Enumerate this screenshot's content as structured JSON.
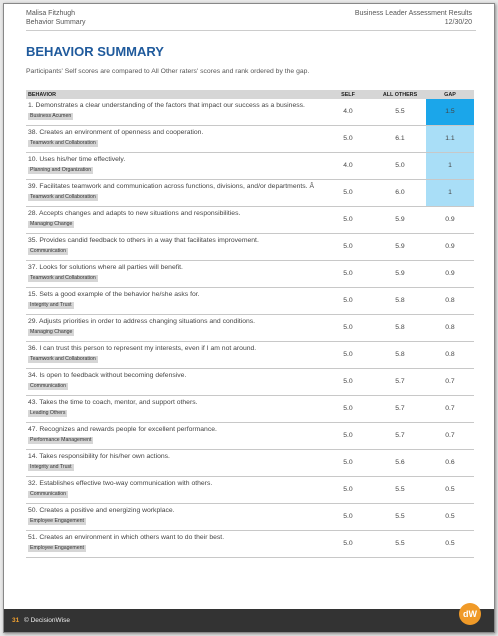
{
  "header": {
    "name": "Malisa Fitzhugh",
    "section": "Behavior Summary",
    "report": "Business Leader Assessment Results",
    "date": "12/30/20"
  },
  "title": "BEHAVIOR SUMMARY",
  "intro": "Participants' Self scores are compared to All Other raters' scores and rank ordered by the gap.",
  "table": {
    "columns": [
      "BEHAVIOR",
      "SELF",
      "ALL OTHERS",
      "GAP"
    ],
    "rows": [
      {
        "text": "1. Demonstrates a clear understanding of the factors that impact our success as a business.",
        "category": "Business Acumen",
        "self": "4.0",
        "others": "5.5",
        "gap": "1.5",
        "gap_color": "#1ba6ea"
      },
      {
        "text": "38. Creates an environment of openness and cooperation.",
        "category": "Teamwork and Collaboration",
        "self": "5.0",
        "others": "6.1",
        "gap": "1.1",
        "gap_color": "#a9def7"
      },
      {
        "text": "10. Uses his/her time effectively.",
        "category": "Planning and Organization",
        "self": "4.0",
        "others": "5.0",
        "gap": "1",
        "gap_color": "#a9def7"
      },
      {
        "text": "39. Facilitates teamwork and communication across functions, divisions, and/or departments. Â",
        "category": "Teamwork and Collaboration",
        "self": "5.0",
        "others": "6.0",
        "gap": "1",
        "gap_color": "#a9def7"
      },
      {
        "text": "28. Accepts changes and adapts to new situations and responsibilities.",
        "category": "Managing Change",
        "self": "5.0",
        "others": "5.9",
        "gap": "0.9"
      },
      {
        "text": "35. Provides candid feedback to others in a way that facilitates improvement.",
        "category": "Communication",
        "self": "5.0",
        "others": "5.9",
        "gap": "0.9"
      },
      {
        "text": "37. Looks for solutions where all parties will benefit.",
        "category": "Teamwork and Collaboration",
        "self": "5.0",
        "others": "5.9",
        "gap": "0.9"
      },
      {
        "text": "15. Sets a good example of the behavior he/she asks for.",
        "category": "Integrity and Trust",
        "self": "5.0",
        "others": "5.8",
        "gap": "0.8"
      },
      {
        "text": "29. Adjusts priorities in order to address changing situations and conditions.",
        "category": "Managing Change",
        "self": "5.0",
        "others": "5.8",
        "gap": "0.8"
      },
      {
        "text": "36. I can trust this person to represent my interests, even if I am not around.",
        "category": "Teamwork and Collaboration",
        "self": "5.0",
        "others": "5.8",
        "gap": "0.8"
      },
      {
        "text": "34. Is open to feedback without becoming defensive.",
        "category": "Communication",
        "self": "5.0",
        "others": "5.7",
        "gap": "0.7"
      },
      {
        "text": "43. Takes the time to coach, mentor, and support others.",
        "category": "Leading Others",
        "self": "5.0",
        "others": "5.7",
        "gap": "0.7"
      },
      {
        "text": "47. Recognizes and rewards people for excellent performance.",
        "category": "Performance Management",
        "self": "5.0",
        "others": "5.7",
        "gap": "0.7"
      },
      {
        "text": "14. Takes responsibility for his/her own actions.",
        "category": "Integrity and Trust",
        "self": "5.0",
        "others": "5.6",
        "gap": "0.6"
      },
      {
        "text": "32. Establishes effective two-way communication with others.",
        "category": "Communication",
        "self": "5.0",
        "others": "5.5",
        "gap": "0.5"
      },
      {
        "text": "50. Creates a positive and energizing workplace.",
        "category": "Employee Engagement",
        "self": "5.0",
        "others": "5.5",
        "gap": "0.5"
      },
      {
        "text": "51. Creates an environment in which others want to do their best.",
        "category": "Employee Engagement",
        "self": "5.0",
        "others": "5.5",
        "gap": "0.5"
      }
    ]
  },
  "footer": {
    "page": "31",
    "brand": "© DecisionWise",
    "logo": "dW"
  }
}
